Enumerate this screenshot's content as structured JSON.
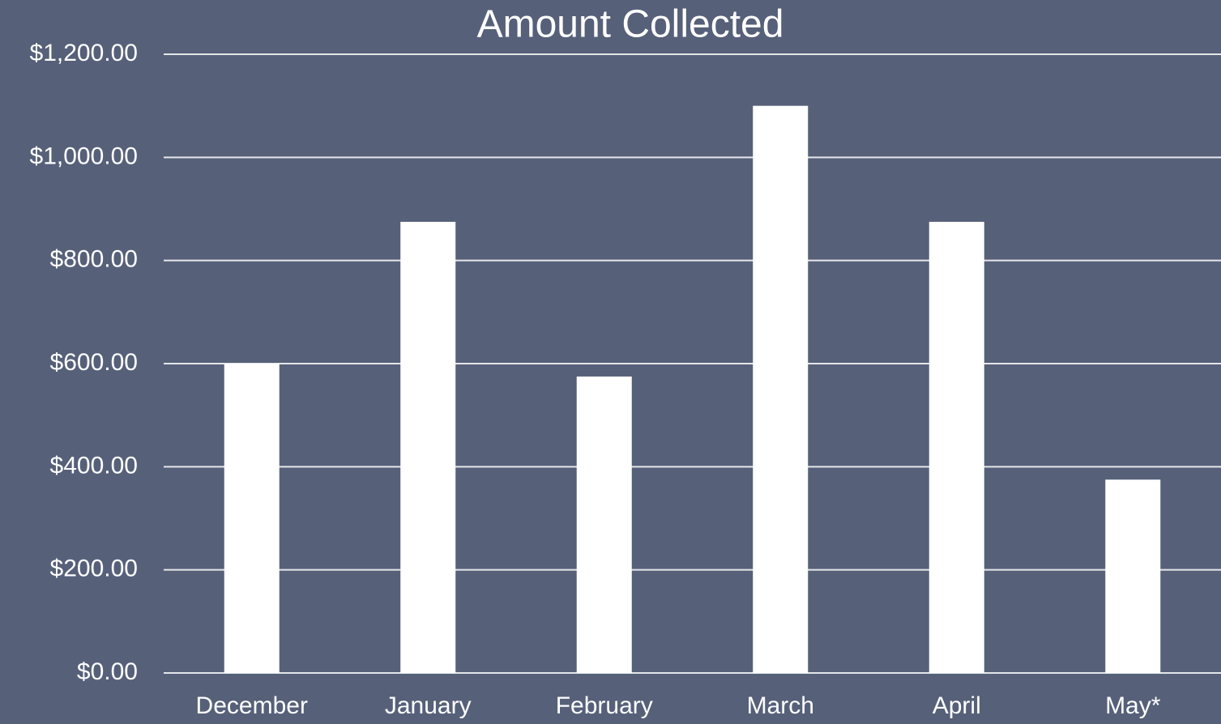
{
  "chart_data": {
    "type": "bar",
    "title": "Amount Collected",
    "categories": [
      "December",
      "January",
      "February",
      "March",
      "April",
      "May*"
    ],
    "values": [
      600,
      875,
      575,
      1100,
      875,
      375
    ],
    "color": "#ffffff",
    "ylim": [
      0,
      1200
    ],
    "yticks": [
      {
        "value": 0,
        "label": "$0.00"
      },
      {
        "value": 200,
        "label": "$200.00"
      },
      {
        "value": 400,
        "label": "$400.00"
      },
      {
        "value": 600,
        "label": "$600.00"
      },
      {
        "value": 800,
        "label": "$800.00"
      },
      {
        "value": 1000,
        "label": "$1,000.00"
      },
      {
        "value": 1200,
        "label": "$1,200.00"
      }
    ],
    "grid": true
  }
}
